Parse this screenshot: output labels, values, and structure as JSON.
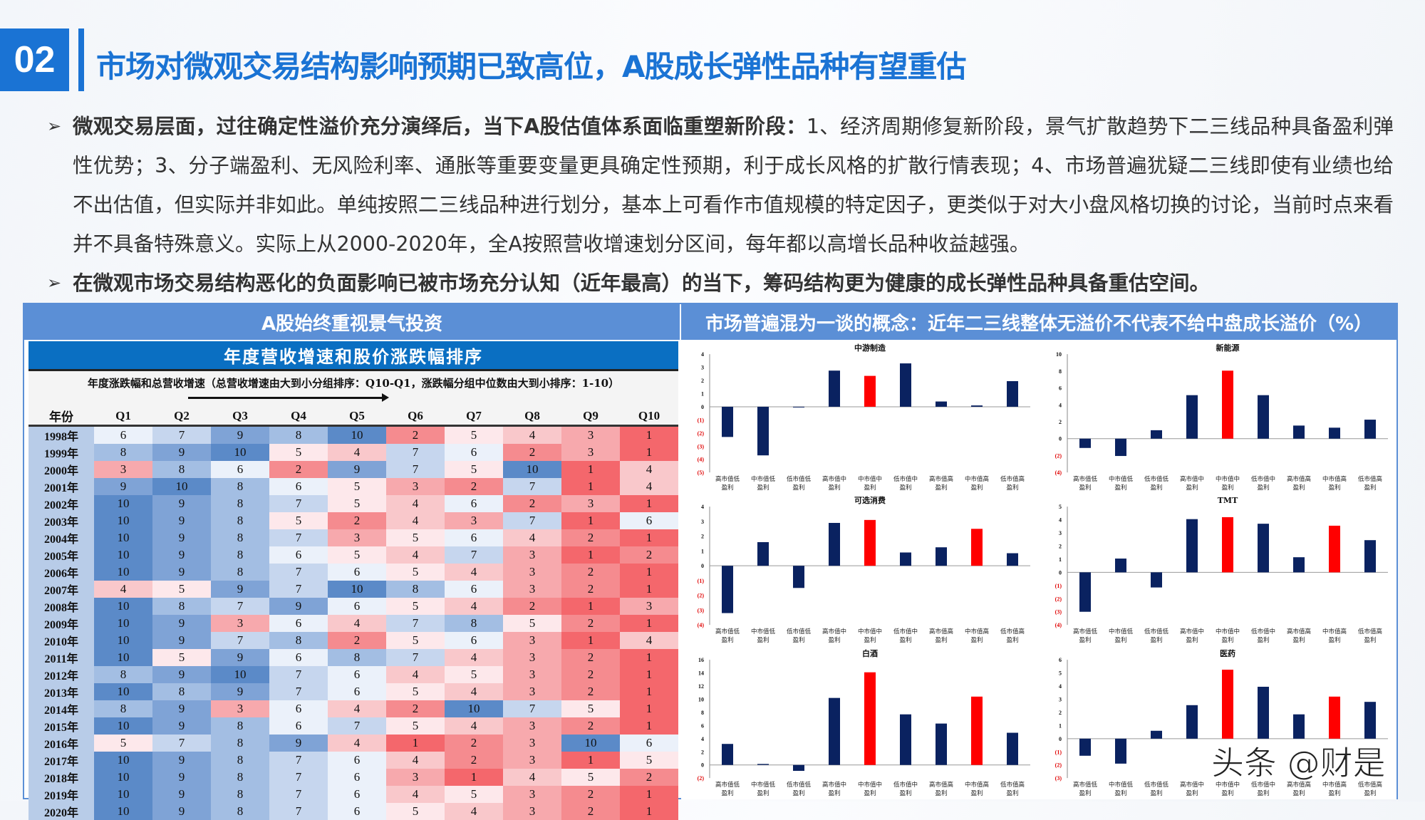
{
  "header": {
    "badge": "02",
    "title": "市场对微观交易结构影响预期已致高位，A股成长弹性品种有望重估"
  },
  "bullets": [
    {
      "bold": "微观交易层面，过往确定性溢价充分演绎后，当下A股估值体系面临重塑新阶段：",
      "text": "1、经济周期修复新阶段，景气扩散趋势下二三线品种具备盈利弹性优势；3、分子端盈利、无风险利率、通胀等重要变量更具确定性预期，利于成长风格的扩散行情表现；4、市场普遍犹疑二三线即使有业绩也给不出估值，但实际并非如此。单纯按照二三线品种进行划分，基本上可看作市值规模的特定因子，更类似于对大小盘风格切换的讨论，当前时点来看并不具备特殊意义。实际上从2000-2020年，全A按照营收增速划分区间，每年都以高增长品种收益越强。"
    },
    {
      "bold": "在微观市场交易结构恶化的负面影响已被市场充分认知（近年最高）的当下，筹码结构更为健康的成长弹性品种具备重估空间。",
      "text": ""
    }
  ],
  "panel": {
    "left_header": "A股始终重视景气投资",
    "right_header": "市场普遍混为一谈的概念：近年二三线整体无溢价不代表不给中盘成长溢价（%）"
  },
  "heatmap": {
    "title": "年度营收增速和股价涨跌幅排序",
    "subtitle": "年度涨跌幅和总营收增速（总营收增速由大到小分组排序：Q10-Q1，涨跌幅分组中位数由大到小排序：1-10）",
    "columns": [
      "年份",
      "Q1",
      "Q2",
      "Q3",
      "Q4",
      "Q5",
      "Q6",
      "Q7",
      "Q8",
      "Q9",
      "Q10"
    ],
    "rows": [
      [
        "1998年",
        6,
        7,
        9,
        8,
        10,
        2,
        5,
        4,
        3,
        1
      ],
      [
        "1999年",
        8,
        9,
        10,
        5,
        4,
        7,
        6,
        2,
        3,
        1
      ],
      [
        "2000年",
        3,
        8,
        6,
        2,
        9,
        7,
        5,
        10,
        1,
        4
      ],
      [
        "2001年",
        9,
        10,
        8,
        6,
        5,
        3,
        2,
        7,
        1,
        4
      ],
      [
        "2002年",
        10,
        9,
        8,
        7,
        5,
        4,
        6,
        2,
        3,
        1
      ],
      [
        "2003年",
        10,
        9,
        8,
        5,
        2,
        4,
        3,
        7,
        1,
        6
      ],
      [
        "2004年",
        10,
        9,
        8,
        7,
        3,
        5,
        6,
        4,
        2,
        1
      ],
      [
        "2005年",
        10,
        9,
        8,
        6,
        5,
        4,
        7,
        3,
        1,
        2
      ],
      [
        "2006年",
        10,
        9,
        8,
        7,
        6,
        5,
        4,
        3,
        2,
        1
      ],
      [
        "2007年",
        4,
        5,
        9,
        7,
        10,
        8,
        6,
        3,
        2,
        1
      ],
      [
        "2008年",
        10,
        8,
        7,
        9,
        6,
        5,
        4,
        2,
        1,
        3
      ],
      [
        "2009年",
        10,
        9,
        3,
        6,
        4,
        7,
        8,
        5,
        2,
        1
      ],
      [
        "2010年",
        10,
        9,
        7,
        8,
        2,
        5,
        6,
        3,
        1,
        4
      ],
      [
        "2011年",
        10,
        5,
        9,
        6,
        8,
        7,
        4,
        3,
        2,
        1
      ],
      [
        "2012年",
        8,
        9,
        10,
        7,
        6,
        4,
        5,
        3,
        2,
        1
      ],
      [
        "2013年",
        10,
        8,
        9,
        7,
        6,
        5,
        4,
        3,
        2,
        1
      ],
      [
        "2014年",
        8,
        9,
        3,
        6,
        4,
        2,
        10,
        7,
        5,
        1
      ],
      [
        "2015年",
        10,
        9,
        8,
        6,
        7,
        5,
        4,
        3,
        2,
        1
      ],
      [
        "2016年",
        5,
        7,
        8,
        9,
        4,
        1,
        2,
        3,
        10,
        6
      ],
      [
        "2017年",
        10,
        9,
        8,
        7,
        6,
        4,
        2,
        3,
        1,
        5
      ],
      [
        "2018年",
        10,
        9,
        8,
        7,
        6,
        3,
        1,
        4,
        5,
        2
      ],
      [
        "2019年",
        10,
        9,
        8,
        7,
        6,
        4,
        5,
        3,
        2,
        1
      ],
      [
        "2020年",
        10,
        9,
        8,
        7,
        6,
        5,
        4,
        3,
        2,
        1
      ]
    ],
    "colors": {
      "10": "#5b8ac8",
      "9": "#7fa3d6",
      "8": "#a3bee3",
      "7": "#c6d6ee",
      "6": "#ebf1fa",
      "5": "#fde8eb",
      "4": "#f9c8cb",
      "3": "#f7a9ad",
      "2": "#f58b8f",
      "1": "#f4676c"
    },
    "year_color": "#b8cce8"
  },
  "chart_data": [
    {
      "type": "bar",
      "title": "中游制造",
      "categories": [
        "高市值低盈利",
        "中市值低盈利",
        "低市值低盈利",
        "高市值中盈利",
        "中市值中盈利",
        "低市值中盈利",
        "高市值高盈利",
        "中市值高盈利",
        "低市值高盈利"
      ],
      "values": [
        -2.3,
        -3.7,
        -0.05,
        2.75,
        2.35,
        3.3,
        0.4,
        0.1,
        1.95
      ],
      "highlight": [
        4
      ],
      "ylim": [
        -5,
        4
      ],
      "yticks": [
        4,
        3,
        2,
        1,
        0,
        -1,
        -2,
        -3,
        -4,
        -5
      ]
    },
    {
      "type": "bar",
      "title": "新能源",
      "categories": [
        "高市值低盈利",
        "中市值低盈利",
        "低市值低盈利",
        "高市值中盈利",
        "中市值中盈利",
        "低市值中盈利",
        "高市值高盈利",
        "中市值高盈利",
        "低市值高盈利"
      ],
      "values": [
        -1.1,
        -2.05,
        1.0,
        5.15,
        8.05,
        5.15,
        1.55,
        1.3,
        2.25
      ],
      "highlight": [
        4
      ],
      "ylim": [
        -4,
        10
      ],
      "yticks": [
        10,
        8,
        6,
        4,
        2,
        0,
        -2,
        -4
      ]
    },
    {
      "type": "bar",
      "title": "可选消费",
      "categories": [
        "高市值低盈利",
        "中市值低盈利",
        "低市值低盈利",
        "高市值中盈利",
        "中市值中盈利",
        "低市值中盈利",
        "高市值高盈利",
        "中市值高盈利",
        "低市值高盈利"
      ],
      "values": [
        -3.2,
        1.6,
        -1.5,
        2.9,
        3.1,
        0.9,
        1.25,
        2.5,
        0.85
      ],
      "highlight": [
        4,
        7
      ],
      "ylim": [
        -4,
        4
      ],
      "yticks": [
        4,
        3,
        2,
        1,
        0,
        -1,
        -2,
        -3,
        -4
      ]
    },
    {
      "type": "bar",
      "title": "TMT",
      "categories": [
        "高市值低盈利",
        "中市值低盈利",
        "低市值低盈利",
        "高市值中盈利",
        "中市值中盈利",
        "低市值中盈利",
        "高市值高盈利",
        "中市值高盈利",
        "低市值高盈利"
      ],
      "values": [
        -3.0,
        1.05,
        -1.15,
        4.05,
        4.2,
        3.7,
        1.15,
        3.55,
        2.45
      ],
      "highlight": [
        4,
        7
      ],
      "ylim": [
        -4,
        5
      ],
      "yticks": [
        5,
        4,
        3,
        2,
        1,
        0,
        -1,
        -2,
        -3,
        -4
      ]
    },
    {
      "type": "bar",
      "title": "白酒",
      "categories": [
        "高市值低盈利",
        "中市值低盈利",
        "低市值低盈利",
        "高市值中盈利",
        "中市值中盈利",
        "低市值中盈利",
        "高市值高盈利",
        "中市值高盈利",
        "低市值高盈利"
      ],
      "values": [
        3.2,
        0.15,
        -0.9,
        10.2,
        14.1,
        7.7,
        6.3,
        10.4,
        4.9
      ],
      "highlight": [
        4,
        7
      ],
      "ylim": [
        -2,
        16
      ],
      "yticks": [
        16,
        14,
        12,
        10,
        8,
        6,
        4,
        2,
        0,
        -2
      ]
    },
    {
      "type": "bar",
      "title": "医药",
      "categories": [
        "高市值低盈利",
        "中市值低盈利",
        "低市值低盈利",
        "高市值中盈利",
        "中市值中盈利",
        "低市值中盈利",
        "高市值高盈利",
        "中市值高盈利",
        "低市值高盈利"
      ],
      "values": [
        -1.3,
        -1.9,
        0.6,
        2.55,
        5.25,
        3.95,
        1.85,
        3.2,
        2.8
      ],
      "highlight": [
        4,
        7
      ],
      "ylim": [
        -3,
        6
      ],
      "yticks": [
        6,
        5,
        4,
        3,
        2,
        1,
        0,
        -1,
        -2,
        -3
      ]
    }
  ],
  "chart_colors": {
    "bar": "#0a2260",
    "highlight": "#ff0000",
    "negative_tick": "#e00000"
  },
  "watermark": "头条 @财是"
}
